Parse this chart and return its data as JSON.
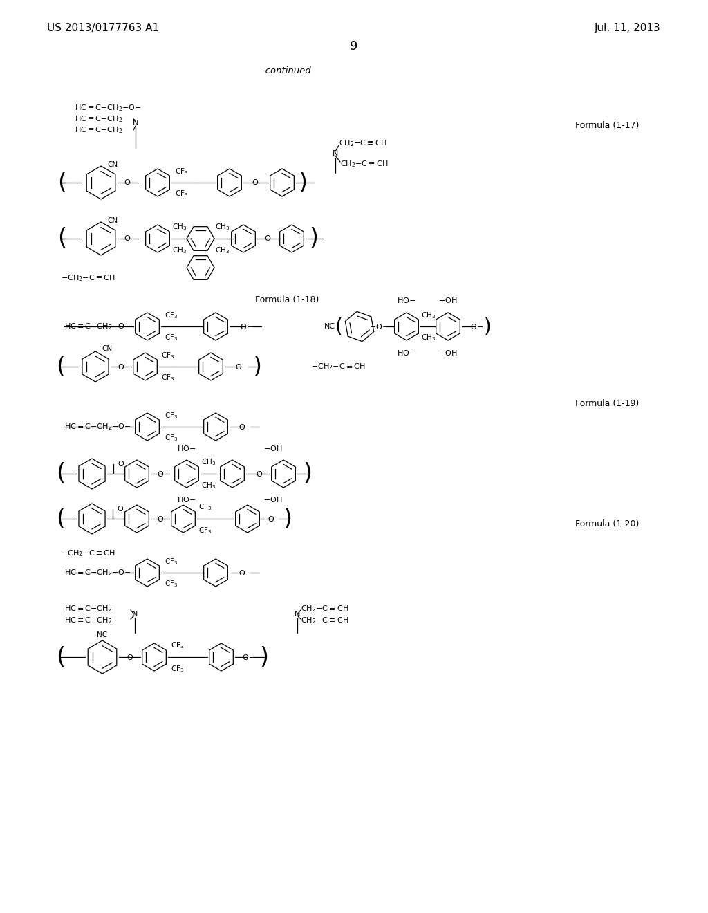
{
  "bg": "#ffffff",
  "tc": "#000000",
  "header_left": "US 2013/0177763 A1",
  "header_right": "Jul. 11, 2013",
  "page_num": "9",
  "continued": "-continued",
  "f17_label": "Formula (1-17)",
  "f18_label": "Formula (1-18)",
  "f19_label": "Formula (1-19)",
  "f20_label": "Formula (1-20)"
}
